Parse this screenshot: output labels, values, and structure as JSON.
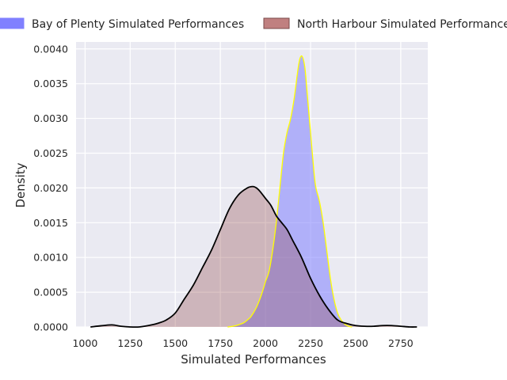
{
  "chart_data": {
    "type": "area",
    "title": "",
    "xlabel": "Simulated Performances",
    "ylabel": "Density",
    "xlim": [
      950,
      2900
    ],
    "ylim": [
      0,
      0.0041
    ],
    "xticks": [
      1000,
      1250,
      1500,
      1750,
      2000,
      2250,
      2500,
      2750
    ],
    "yticks": [
      0.0,
      0.0005,
      0.001,
      0.0015,
      0.002,
      0.0025,
      0.003,
      0.0035,
      0.004
    ],
    "ytick_labels": [
      "0.0000",
      "0.0005",
      "0.0010",
      "0.0015",
      "0.0020",
      "0.0025",
      "0.0030",
      "0.0035",
      "0.0040"
    ],
    "grid": true,
    "legend_position": "top",
    "series": [
      {
        "name": "Bay of Plenty Simulated Performances",
        "fill_color": "#8080ff",
        "fill_opacity": 0.55,
        "line_color": "#ffff00",
        "x": [
          1790,
          1820,
          1850,
          1880,
          1900,
          1920,
          1950,
          1980,
          2000,
          2020,
          2040,
          2060,
          2080,
          2100,
          2120,
          2140,
          2160,
          2180,
          2190,
          2200,
          2210,
          2220,
          2230,
          2250,
          2270,
          2280,
          2300,
          2320,
          2340,
          2360,
          2380,
          2400,
          2420,
          2440,
          2460,
          2480
        ],
        "y": [
          0.0,
          1e-05,
          3e-05,
          6e-05,
          0.0001,
          0.00015,
          0.00028,
          0.00048,
          0.00065,
          0.0008,
          0.0011,
          0.0015,
          0.002,
          0.0025,
          0.0028,
          0.003,
          0.0033,
          0.0037,
          0.00385,
          0.0039,
          0.00385,
          0.0037,
          0.0034,
          0.0028,
          0.0022,
          0.002,
          0.0018,
          0.0015,
          0.0011,
          0.0007,
          0.0004,
          0.0002,
          0.0001,
          4e-05,
          1e-05,
          0.0
        ]
      },
      {
        "name": "North Harbour Simulated Performances",
        "fill_color": "#8b3a3a",
        "fill_opacity": 0.3,
        "line_color": "#000000",
        "x": [
          1030,
          1100,
          1150,
          1200,
          1250,
          1300,
          1350,
          1400,
          1450,
          1500,
          1550,
          1600,
          1650,
          1700,
          1750,
          1800,
          1850,
          1900,
          1930,
          1950,
          1970,
          2000,
          2030,
          2060,
          2090,
          2120,
          2150,
          2200,
          2250,
          2300,
          2350,
          2400,
          2450,
          2500,
          2550,
          2600,
          2650,
          2700,
          2750,
          2800,
          2840
        ],
        "y": [
          0.0,
          2e-05,
          3e-05,
          1e-05,
          0.0,
          0.0,
          2e-05,
          5e-05,
          0.0001,
          0.0002,
          0.0004,
          0.0006,
          0.00085,
          0.0011,
          0.0014,
          0.0017,
          0.0019,
          0.002,
          0.00202,
          0.002,
          0.00195,
          0.00185,
          0.00175,
          0.0016,
          0.0015,
          0.0014,
          0.00125,
          0.001,
          0.0007,
          0.00045,
          0.00025,
          0.0001,
          5e-05,
          2e-05,
          1e-05,
          1e-05,
          2e-05,
          2e-05,
          1e-05,
          0.0,
          0.0
        ]
      }
    ]
  }
}
